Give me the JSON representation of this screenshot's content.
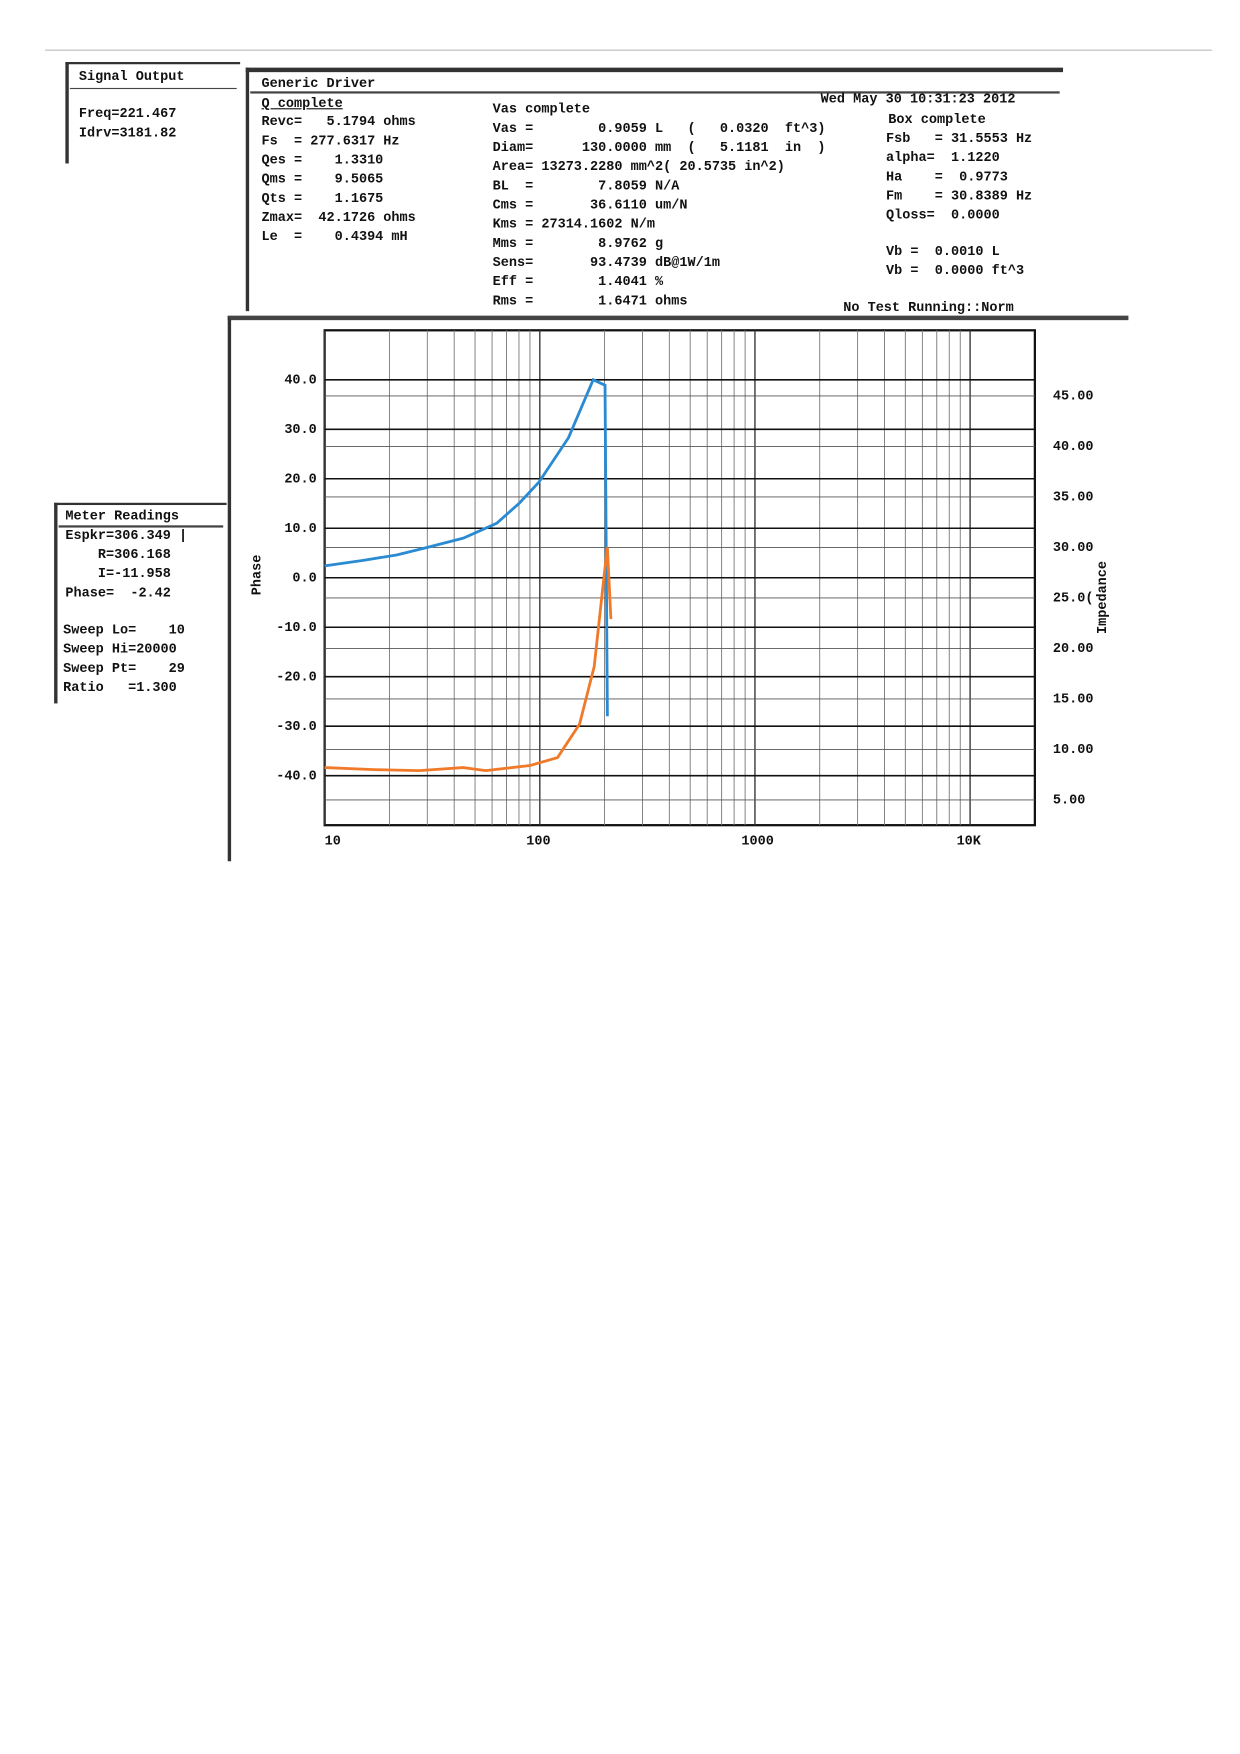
{
  "signal_output": {
    "title": "Signal Output",
    "lines": [
      "Freq=221.467",
      "Idrv=3181.82"
    ]
  },
  "driver": {
    "title": "Generic Driver",
    "timestamp": "Wed May 30 10:31:23 2012",
    "status": "No Test Running::Norm",
    "q_complete": {
      "title": "Q complete",
      "lines": [
        "Revc=   5.1794 ohms",
        "Fs  = 277.6317 Hz",
        "Qes =    1.3310",
        "Qms =    9.5065",
        "Qts =    1.1675",
        "Zmax=  42.1726 ohms",
        "Le  =    0.4394 mH"
      ]
    },
    "vas_complete": {
      "title": "Vas complete",
      "lines": [
        "Vas =        0.9059 L   (   0.0320  ft^3)",
        "Diam=      130.0000 mm  (   5.1181  in  )",
        "Area= 13273.2280 mm^2( 20.5735 in^2)",
        "BL  =        7.8059 N/A",
        "Cms =       36.6110 um/N",
        "Kms = 27314.1602 N/m",
        "Mms =        8.9762 g",
        "Sens=       93.4739 dB@1W/1m",
        "Eff =        1.4041 %",
        "Rms =        1.6471 ohms"
      ]
    },
    "box_complete": {
      "title": "Box complete",
      "lines": [
        "Fsb   = 31.5553 Hz",
        "alpha=  1.1220",
        "Ha    =  0.9773",
        "Fm    = 30.8389 Hz",
        "Qloss=  0.0000"
      ],
      "vb_lines": [
        "Vb =  0.0010 L",
        "Vb =  0.0000 ft^3"
      ]
    }
  },
  "meter_readings": {
    "title": "Meter Readings",
    "lines": [
      "Espkr=306.349 |",
      "    R=306.168",
      "    I=-11.958",
      "Phase=  -2.42"
    ],
    "sweep_lines": [
      "Sweep Lo=    10",
      "Sweep Hi=20000",
      "Sweep Pt=    29",
      "Ratio   =1.300"
    ]
  },
  "chart_data": {
    "type": "line",
    "y_label": "Phase",
    "y2_label": "Impedance",
    "xscale": "log",
    "grid": true,
    "xlim": [
      10,
      20000
    ],
    "xticks": [
      10,
      100,
      1000,
      {
        "value": 10000,
        "label": "10K"
      }
    ],
    "ylim": [
      -50,
      50
    ],
    "yticks": [
      {
        "value": 40,
        "label": "40.0"
      },
      {
        "value": 30,
        "label": "30.0"
      },
      {
        "value": 20,
        "label": "20.0"
      },
      {
        "value": 10,
        "label": "10.0"
      },
      {
        "value": 0,
        "label": "0.0"
      },
      {
        "value": -10,
        "label": "-10.0"
      },
      {
        "value": -20,
        "label": "-20.0"
      },
      {
        "value": -30,
        "label": "-30.0"
      },
      {
        "value": -40,
        "label": "-40.0"
      }
    ],
    "y2lim": [
      2.5,
      51.5
    ],
    "y2ticks": [
      {
        "value": 45,
        "label": "45.00"
      },
      {
        "value": 40,
        "label": "40.00"
      },
      {
        "value": 35,
        "label": "35.00"
      },
      {
        "value": 30,
        "label": "30.00"
      },
      {
        "value": 25,
        "label": "25.0("
      },
      {
        "value": 20,
        "label": "20.00"
      },
      {
        "value": 15,
        "label": "15.00"
      },
      {
        "value": 10,
        "label": "10.00"
      },
      {
        "value": 5,
        "label": "5.00"
      }
    ],
    "series": [
      {
        "color": "#2a8ad2",
        "x": [
          10,
          15.1,
          21.6,
          29.1,
          44.1,
          63,
          80,
          99,
          136,
          177,
          201,
          206
        ],
        "values": [
          2.4,
          3.5,
          4.6,
          6.0,
          8.0,
          11.0,
          15.0,
          19.3,
          28.3,
          40.0,
          38.9,
          -28.0
        ]
      },
      {
        "color": "#f07a2a",
        "axis": "y2",
        "x": [
          10,
          17,
          27.5,
          44,
          56,
          90,
          121,
          153,
          179,
          199,
          206,
          214
        ],
        "values": [
          8.2,
          8.0,
          7.9,
          8.2,
          7.9,
          8.4,
          9.2,
          12.5,
          18.2,
          27.2,
          30.0,
          22.9
        ]
      }
    ]
  }
}
